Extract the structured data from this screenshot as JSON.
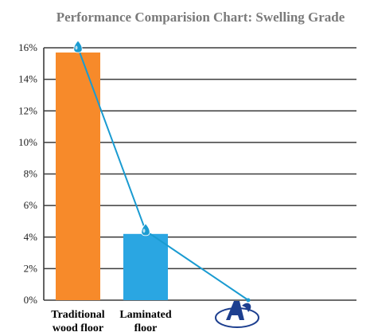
{
  "chart_data": {
    "type": "bar",
    "title": "Performance Comparision Chart: Swelling Grade",
    "categories": [
      "Traditional wood floor",
      "Laminated floor",
      ""
    ],
    "category_label_lines": [
      [
        "Traditional",
        "wood floor"
      ],
      [
        "Laminated",
        "floor"
      ],
      []
    ],
    "values": [
      15.7,
      4.2,
      null
    ],
    "bar_colors": [
      "#f78a2a",
      "#2aa6e2"
    ],
    "trend_values": [
      16,
      4.4,
      0
    ],
    "trend_color": "#1a9bd1",
    "yticks": [
      "0%",
      "2%",
      "4%",
      "6%",
      "8%",
      "10%",
      "12%",
      "14%",
      "16%"
    ],
    "ylim": [
      0,
      16
    ],
    "grid": true,
    "xlabel": "",
    "ylabel": ""
  },
  "logo": {
    "name": "company-logo"
  }
}
